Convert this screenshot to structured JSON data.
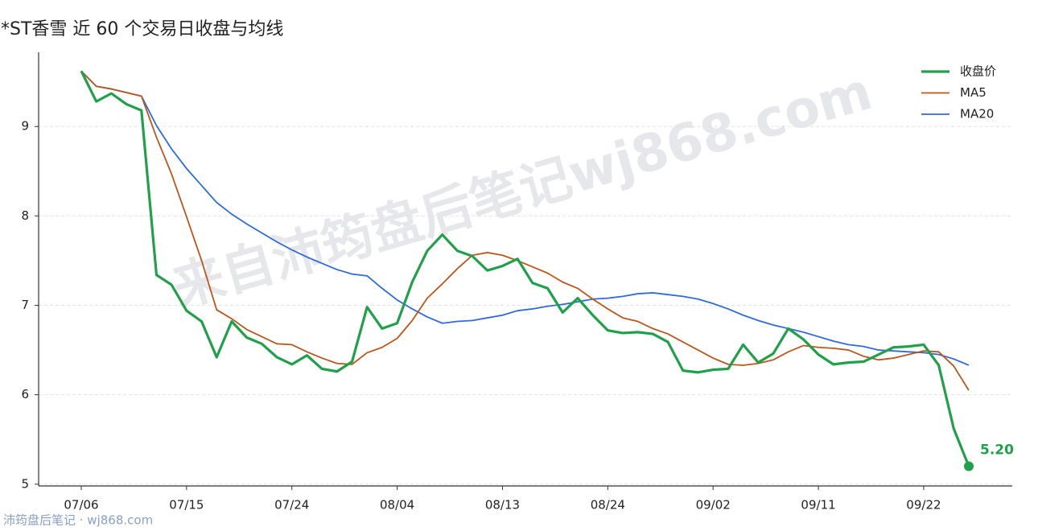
{
  "chart_data": {
    "type": "line",
    "title": "*ST香雪 近 60 个交易日收盘与均线",
    "watermark": "来自沛筠盘后笔记wj868.com",
    "footer": "沛筠盘后笔记 · wj868.com",
    "categories": [
      "07/06",
      null,
      null,
      null,
      null,
      null,
      null,
      "07/15",
      null,
      null,
      null,
      null,
      null,
      null,
      "07/24",
      null,
      null,
      null,
      null,
      null,
      null,
      "08/04",
      null,
      null,
      null,
      null,
      null,
      null,
      "08/13",
      null,
      null,
      null,
      null,
      null,
      null,
      "08/24",
      null,
      null,
      null,
      null,
      null,
      null,
      "09/02",
      null,
      null,
      null,
      null,
      null,
      null,
      "09/11",
      null,
      null,
      null,
      null,
      null,
      null,
      "09/22",
      null,
      null,
      null
    ],
    "series": [
      {
        "name": "收盘价",
        "color": "#20a04a",
        "width": 3.2,
        "values": [
          9.62,
          9.28,
          9.37,
          9.25,
          9.18,
          7.34,
          7.23,
          6.94,
          6.82,
          6.42,
          6.82,
          6.64,
          6.57,
          6.42,
          6.34,
          6.44,
          6.29,
          6.26,
          6.37,
          6.98,
          6.74,
          6.8,
          7.26,
          7.61,
          7.79,
          7.61,
          7.55,
          7.39,
          7.44,
          7.52,
          7.25,
          7.19,
          6.92,
          7.08,
          6.89,
          6.72,
          6.69,
          6.7,
          6.68,
          6.59,
          6.27,
          6.25,
          6.28,
          6.29,
          6.56,
          6.36,
          6.46,
          6.74,
          6.62,
          6.45,
          6.34,
          6.36,
          6.37,
          6.45,
          6.53,
          6.54,
          6.56,
          6.33,
          5.62,
          5.2
        ],
        "value_labels": [
          null,
          null,
          null,
          null,
          null,
          null,
          null,
          null,
          null,
          null,
          null,
          null,
          null,
          null,
          null,
          null,
          null,
          null,
          null,
          null,
          null,
          null,
          null,
          null,
          null,
          null,
          null,
          null,
          null,
          null,
          null,
          null,
          null,
          null,
          null,
          null,
          null,
          null,
          null,
          null,
          null,
          null,
          null,
          null,
          null,
          null,
          null,
          null,
          null,
          null,
          null,
          null,
          null,
          null,
          null,
          null,
          null,
          null,
          null,
          "5.20"
        ]
      },
      {
        "name": "MA5",
        "color": "#b9581c",
        "width": 1.8,
        "values": [
          9.62,
          9.45,
          9.42,
          9.38,
          9.34,
          8.88,
          8.47,
          7.99,
          7.5,
          6.95,
          6.85,
          6.73,
          6.65,
          6.57,
          6.56,
          6.48,
          6.41,
          6.35,
          6.34,
          6.47,
          6.53,
          6.63,
          6.83,
          7.08,
          7.24,
          7.41,
          7.56,
          7.59,
          7.56,
          7.5,
          7.43,
          7.36,
          7.26,
          7.19,
          7.07,
          6.96,
          6.86,
          6.82,
          6.74,
          6.68,
          6.59,
          6.5,
          6.41,
          6.34,
          6.33,
          6.35,
          6.39,
          6.48,
          6.55,
          6.53,
          6.52,
          6.5,
          6.43,
          6.39,
          6.41,
          6.45,
          6.49,
          6.48,
          6.32,
          6.05
        ]
      },
      {
        "name": "MA20",
        "color": "#2f6bdc",
        "width": 1.8,
        "values": [
          9.62,
          9.45,
          9.42,
          9.38,
          9.34,
          9.01,
          8.75,
          8.53,
          8.34,
          8.15,
          8.02,
          7.91,
          7.81,
          7.71,
          7.62,
          7.54,
          7.47,
          7.4,
          7.35,
          7.33,
          7.19,
          7.06,
          6.96,
          6.87,
          6.8,
          6.82,
          6.83,
          6.86,
          6.89,
          6.94,
          6.96,
          6.99,
          7.01,
          7.04,
          7.07,
          7.08,
          7.1,
          7.13,
          7.14,
          7.12,
          7.1,
          7.07,
          7.02,
          6.96,
          6.89,
          6.83,
          6.78,
          6.74,
          6.7,
          6.65,
          6.6,
          6.56,
          6.54,
          6.5,
          6.49,
          6.48,
          6.47,
          6.45,
          6.4,
          6.33
        ]
      }
    ],
    "ylim": [
      4.98,
      9.83
    ],
    "yticks": [
      5,
      6,
      7,
      8,
      9
    ],
    "grid": true,
    "legend": "upper right"
  }
}
